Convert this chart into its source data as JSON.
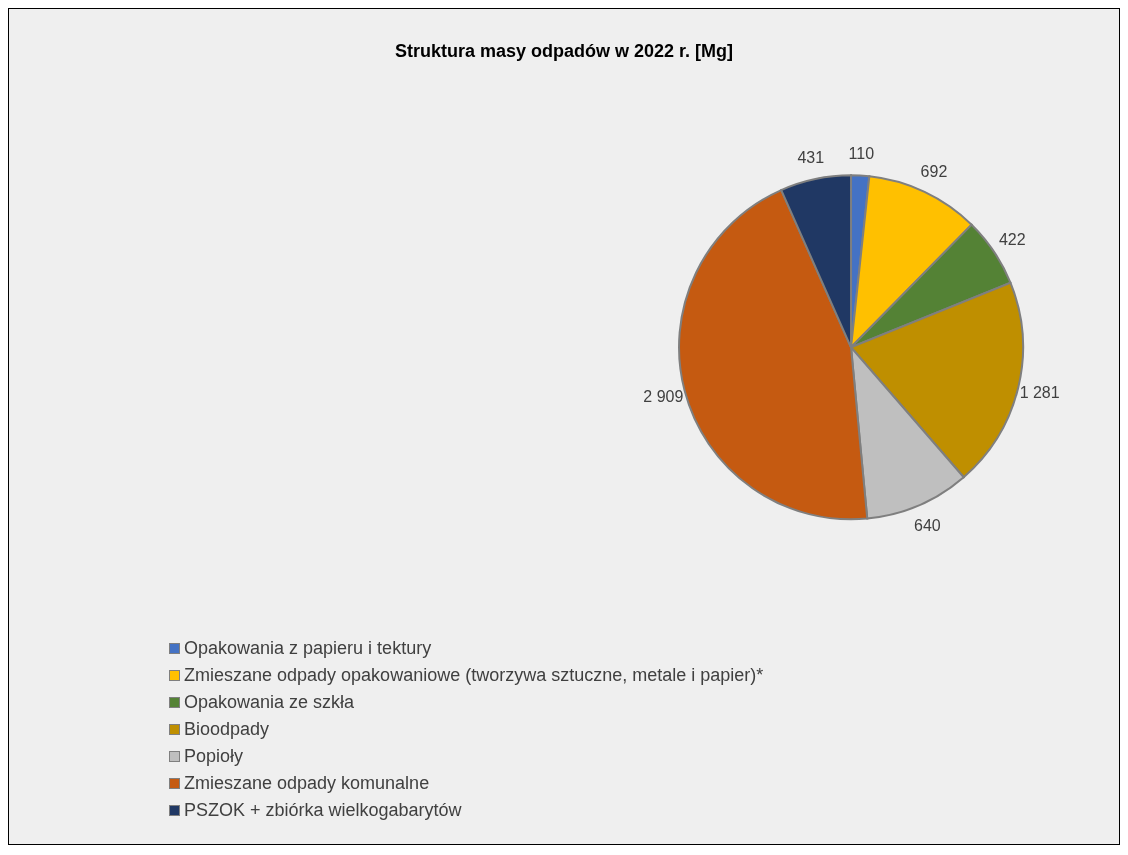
{
  "chart_data": {
    "type": "pie",
    "title": "Struktura masy odpadów w 2022 r. [Mg]",
    "categories": [
      "Opakowania z papieru i tektury",
      "Zmieszane odpady opakowaniowe (tworzywa sztuczne, metale i papier)*",
      "Opakowania ze szkła",
      "Bioodpady",
      "Popioły",
      "Zmieszane odpady komunalne",
      "PSZOK + zbiórka wielkogabarytów"
    ],
    "values": [
      110,
      692,
      422,
      1281,
      640,
      2909,
      431
    ],
    "value_labels": [
      "110",
      "692",
      "422",
      "1 281",
      "640",
      "2 909",
      "431"
    ],
    "colors": [
      "#4472c4",
      "#ffc000",
      "#548235",
      "#bf8f00",
      "#bfbfbf",
      "#c55a11",
      "#203864"
    ],
    "legend": "bottom"
  }
}
